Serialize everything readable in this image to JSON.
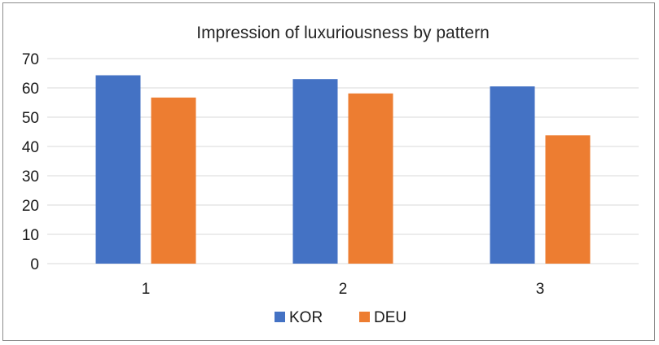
{
  "chart_data": {
    "type": "bar",
    "title": "Impression of luxuriousness by pattern",
    "categories": [
      "1",
      "2",
      "3"
    ],
    "series": [
      {
        "name": "KOR",
        "color": "#4472C4",
        "values": [
          64.3,
          63.0,
          60.5
        ]
      },
      {
        "name": "DEU",
        "color": "#ED7D31",
        "values": [
          56.7,
          58.1,
          43.8
        ]
      }
    ],
    "ylim": [
      0,
      70
    ],
    "yticks": [
      0,
      10,
      20,
      30,
      40,
      50,
      60,
      70
    ],
    "grid": true,
    "legend": "bottom-center",
    "gridColor": "#d9d9d9"
  }
}
